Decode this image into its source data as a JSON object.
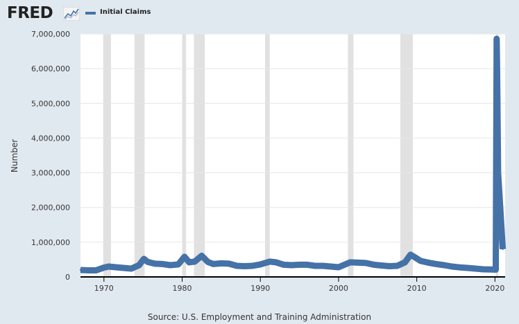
{
  "header": {
    "logo_text": "FRED",
    "logo_icon": "line-chart-icon",
    "legend_label": "Initial Claims"
  },
  "colors": {
    "background": "#e1e9f0",
    "plot_background": "#ffffff",
    "series": "#4572a7",
    "recession": "#e1e1e1",
    "grid": "#e6e6e6"
  },
  "source_text": "Source: U.S. Employment and Training Administration",
  "chart_data": {
    "type": "line",
    "title": "",
    "xlabel": "",
    "ylabel": "Number",
    "xlim": [
      1967.0,
      2021.3
    ],
    "ylim": [
      0,
      7000000
    ],
    "yticks": [
      0,
      1000000,
      2000000,
      3000000,
      4000000,
      5000000,
      6000000,
      7000000
    ],
    "ytick_labels": [
      "0",
      "1,000,000",
      "2,000,000",
      "3,000,000",
      "4,000,000",
      "5,000,000",
      "6,000,000",
      "7,000,000"
    ],
    "xticks": [
      1970,
      1980,
      1990,
      2000,
      2010,
      2020
    ],
    "xtick_labels": [
      "1970",
      "1980",
      "1990",
      "2000",
      "2010",
      "2020"
    ],
    "grid": "horizontal",
    "legend": "top-left",
    "recessions": [
      [
        1969.9,
        1970.9
      ],
      [
        1973.9,
        1975.2
      ],
      [
        1980.0,
        1980.5
      ],
      [
        1981.5,
        1982.9
      ],
      [
        1990.6,
        1991.2
      ],
      [
        2001.2,
        2001.9
      ],
      [
        2007.9,
        2009.5
      ],
      [
        2020.1,
        2020.4
      ]
    ],
    "series": [
      {
        "name": "Initial Claims",
        "x": [
          1967.0,
          1968.0,
          1969.0,
          1970.0,
          1970.6,
          1971.5,
          1972.5,
          1973.5,
          1974.5,
          1975.1,
          1975.6,
          1976.5,
          1977.5,
          1978.5,
          1979.5,
          1980.3,
          1980.9,
          1981.6,
          1982.5,
          1983.3,
          1984.0,
          1985.0,
          1986.0,
          1987.0,
          1988.0,
          1989.0,
          1990.0,
          1991.2,
          1992.0,
          1993.0,
          1994.0,
          1995.0,
          1996.0,
          1997.0,
          1998.0,
          1999.0,
          2000.0,
          2001.5,
          2002.5,
          2003.5,
          2004.5,
          2005.5,
          2006.5,
          2007.5,
          2008.5,
          2009.2,
          2009.8,
          2010.5,
          2011.5,
          2012.5,
          2013.5,
          2014.5,
          2015.5,
          2016.5,
          2017.5,
          2018.5,
          2019.5,
          2020.1,
          2020.22,
          2020.26,
          2020.4,
          2021.0
        ],
        "values": [
          200000,
          190000,
          190000,
          270000,
          300000,
          280000,
          260000,
          240000,
          340000,
          520000,
          430000,
          380000,
          370000,
          340000,
          360000,
          580000,
          420000,
          440000,
          610000,
          430000,
          370000,
          390000,
          380000,
          320000,
          310000,
          320000,
          360000,
          440000,
          420000,
          350000,
          340000,
          350000,
          350000,
          320000,
          320000,
          300000,
          280000,
          420000,
          410000,
          400000,
          350000,
          330000,
          310000,
          320000,
          420000,
          640000,
          560000,
          460000,
          410000,
          370000,
          340000,
          300000,
          275000,
          260000,
          240000,
          220000,
          215000,
          210000,
          6860000,
          6200000,
          3000000,
          800000
        ]
      }
    ]
  }
}
